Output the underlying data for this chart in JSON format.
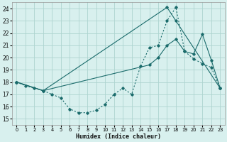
{
  "xlabel": "Humidex (Indice chaleur)",
  "bg_color": "#d8f0ee",
  "grid_color": "#aed4d0",
  "line_color": "#1a6b6b",
  "xlim": [
    -0.5,
    23.5
  ],
  "ylim": [
    14.5,
    24.5
  ],
  "xticks": [
    0,
    1,
    2,
    3,
    4,
    5,
    6,
    7,
    8,
    9,
    10,
    11,
    12,
    13,
    14,
    15,
    16,
    17,
    18,
    19,
    20,
    21,
    22,
    23
  ],
  "yticks": [
    15,
    16,
    17,
    18,
    19,
    20,
    21,
    22,
    23,
    24
  ],
  "line1_x": [
    0,
    1,
    2,
    3,
    4,
    5,
    6,
    7,
    8,
    9,
    10,
    11,
    12,
    13,
    14,
    15,
    16,
    17,
    18,
    19,
    20,
    21,
    22,
    23
  ],
  "line1_y": [
    18.0,
    17.7,
    17.5,
    17.3,
    17.0,
    16.7,
    15.8,
    15.5,
    15.5,
    15.7,
    16.2,
    17.0,
    17.5,
    17.0,
    19.3,
    20.8,
    21.0,
    23.0,
    24.1,
    20.5,
    19.9,
    19.5,
    19.2,
    17.5
  ],
  "line2_x": [
    0,
    3,
    17,
    18,
    23
  ],
  "line2_y": [
    18.0,
    17.3,
    24.1,
    23.0,
    17.5
  ],
  "line3_x": [
    0,
    3,
    15,
    16,
    17,
    18,
    19,
    20,
    21,
    22,
    23
  ],
  "line3_y": [
    18.0,
    17.3,
    19.4,
    20.0,
    21.0,
    21.5,
    20.5,
    20.3,
    21.9,
    19.8,
    17.5
  ]
}
